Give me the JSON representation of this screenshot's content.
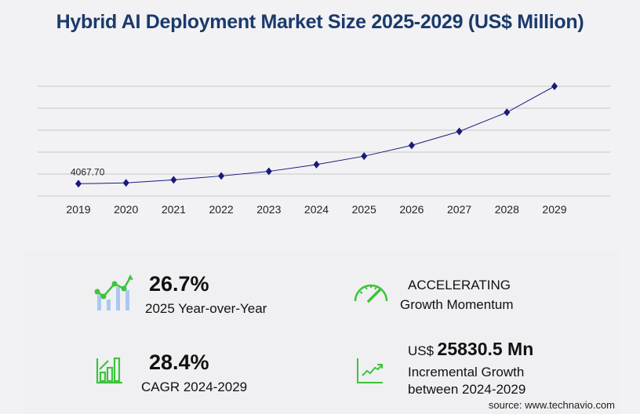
{
  "title": "Hybrid AI Deployment Market Size 2025-2029 (US$ Million)",
  "chart_data": {
    "type": "line",
    "title": "Hybrid AI Deployment Market Size 2025-2029 (US$ Million)",
    "categories": [
      "2019",
      "2020",
      "2021",
      "2022",
      "2023",
      "2024",
      "2025",
      "2026",
      "2027",
      "2028",
      "2029"
    ],
    "values": [
      4067.7,
      4320,
      5340,
      6610,
      8130,
      10370,
      13140,
      16700,
      21300,
      27600,
      36200
    ],
    "data_labels": [
      {
        "index": 0,
        "text": "4067.70"
      }
    ],
    "ylim": [
      0,
      36200
    ],
    "grid": true,
    "line_color": "#1a1a7a",
    "marker": "diamond",
    "xlabel": "",
    "ylabel": ""
  },
  "stats": {
    "yoy": {
      "value": "26.7%",
      "label": "2025 Year-over-Year",
      "icon": "bar-line-growth-icon"
    },
    "momentum": {
      "value": "ACCELERATING",
      "label": "Growth Momentum",
      "icon": "speedometer-icon"
    },
    "cagr": {
      "value": "28.4%",
      "label": "CAGR 2024-2029",
      "icon": "bar-chart-growth-icon"
    },
    "incremental": {
      "prefix": "US$",
      "value": "25830.5 Mn",
      "label1": "Incremental Growth",
      "label2": "between 2024-2029",
      "icon": "trend-up-icon"
    }
  },
  "accent_color": "#3cc43c",
  "source": "source: www.technavio.com"
}
